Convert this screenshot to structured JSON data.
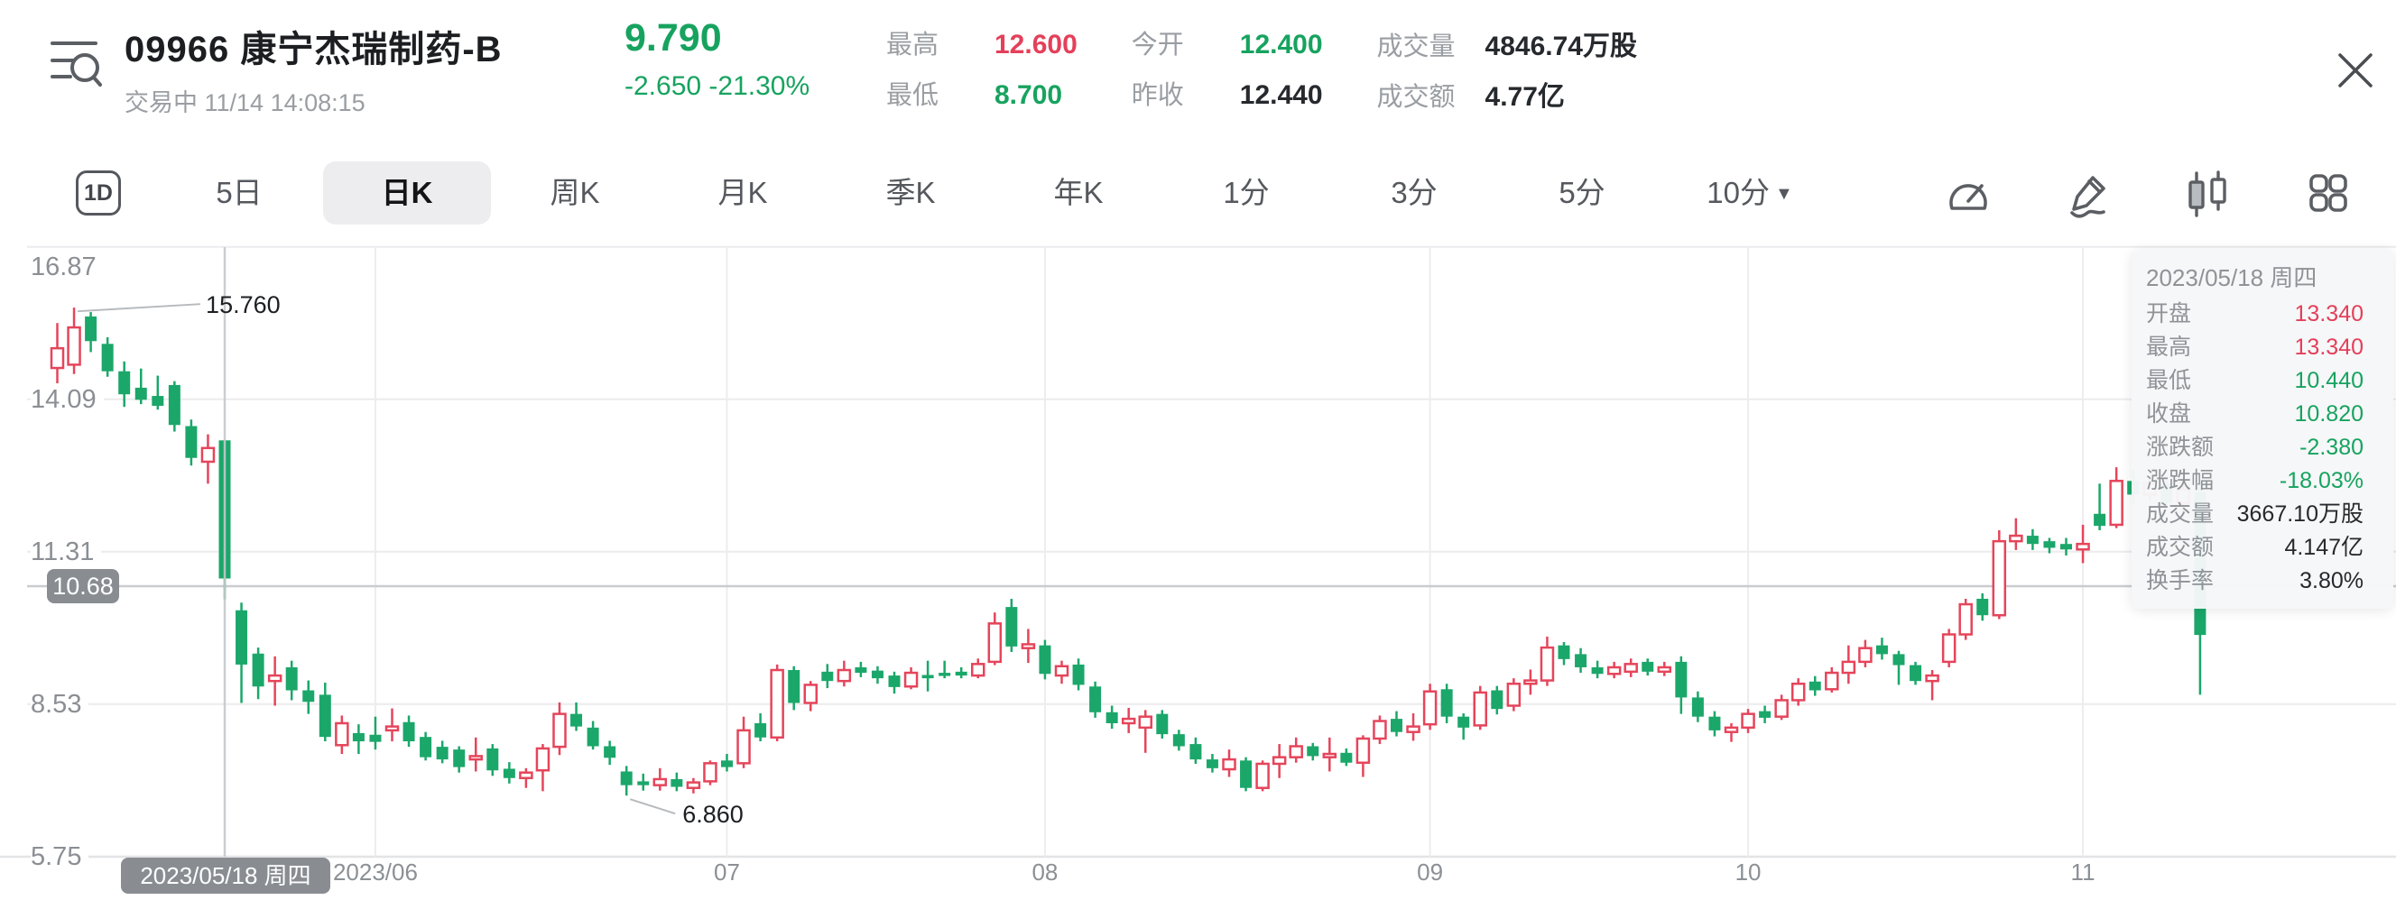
{
  "header": {
    "code_name": "09966  康宁杰瑞制药-B",
    "status_line": "交易中 11/14 14:08:15",
    "price": "9.790",
    "change": "-2.650 -21.30%",
    "stats": [
      {
        "label": "最高",
        "value": "12.600",
        "color": "red"
      },
      {
        "label": "最低",
        "value": "8.700",
        "color": "green"
      },
      {
        "label": "今开",
        "value": "12.400",
        "color": "green"
      },
      {
        "label": "昨收",
        "value": "12.440",
        "color": "black"
      },
      {
        "label": "成交量",
        "value": "4846.74万股",
        "color": "black"
      },
      {
        "label": "成交额",
        "value": "4.77亿",
        "color": "black"
      }
    ]
  },
  "toolbar": {
    "range_button": "1D",
    "tabs": [
      {
        "label": "5日"
      },
      {
        "label": "日K",
        "active": true
      },
      {
        "label": "周K"
      },
      {
        "label": "月K"
      },
      {
        "label": "季K"
      },
      {
        "label": "年K"
      },
      {
        "label": "1分"
      },
      {
        "label": "3分"
      },
      {
        "label": "5分"
      },
      {
        "label": "10分",
        "dropdown": true
      }
    ],
    "icons": [
      "gauge-icon",
      "draw-pencil-icon",
      "candlestick-style-icon",
      "grid-layout-icon"
    ]
  },
  "tooltip": {
    "date": "2023/05/18 周四",
    "rows": [
      {
        "label": "开盘",
        "value": "13.340",
        "color": "red"
      },
      {
        "label": "最高",
        "value": "13.340",
        "color": "red"
      },
      {
        "label": "最低",
        "value": "10.440",
        "color": "green"
      },
      {
        "label": "收盘",
        "value": "10.820",
        "color": "green"
      },
      {
        "label": "涨跌额",
        "value": "-2.380",
        "color": "green"
      },
      {
        "label": "涨跌幅",
        "value": "-18.03%",
        "color": "green"
      },
      {
        "label": "成交量",
        "value": "3667.10万股",
        "color": "black"
      },
      {
        "label": "成交额",
        "value": "4.147亿",
        "color": "black"
      },
      {
        "label": "换手率",
        "value": "3.80%",
        "color": "black"
      }
    ]
  },
  "chart_data": {
    "type": "candlestick",
    "y_axis_labels": [
      "16.87",
      "14.09",
      "11.31",
      "8.53",
      "5.75"
    ],
    "ylim": [
      5.75,
      16.87
    ],
    "grid": true,
    "x_axis": [
      {
        "label": "2023/06",
        "candle_index": 19
      },
      {
        "label": "07",
        "candle_index": 40
      },
      {
        "label": "08",
        "candle_index": 59
      },
      {
        "label": "09",
        "candle_index": 82
      },
      {
        "label": "10",
        "candle_index": 101
      },
      {
        "label": "11",
        "candle_index": 121
      }
    ],
    "crosshair": {
      "candle_index": 10,
      "price_label": "10.68",
      "date_label": "2023/05/18 周四"
    },
    "annotations": [
      {
        "text": "15.760",
        "candle_index": 1,
        "kind": "high"
      },
      {
        "text": "6.860",
        "candle_index": 34,
        "kind": "low"
      }
    ],
    "colors": {
      "up": "#e5455b",
      "down": "#1ba76a"
    },
    "candles_format": [
      "open",
      "high",
      "low",
      "close"
    ],
    "candles": [
      [
        14.66,
        15.48,
        14.25,
        15.02
      ],
      [
        14.72,
        15.76,
        14.55,
        15.4
      ],
      [
        15.6,
        15.68,
        14.95,
        15.15
      ],
      [
        15.1,
        15.22,
        14.5,
        14.6
      ],
      [
        14.6,
        14.78,
        13.95,
        14.18
      ],
      [
        14.3,
        14.65,
        14.0,
        14.08
      ],
      [
        14.15,
        14.52,
        13.9,
        13.97
      ],
      [
        14.35,
        14.42,
        13.5,
        13.62
      ],
      [
        13.6,
        13.72,
        12.88,
        13.02
      ],
      [
        12.95,
        13.45,
        12.55,
        13.2
      ],
      [
        13.34,
        13.34,
        10.44,
        10.82
      ],
      [
        10.24,
        10.38,
        8.55,
        9.25
      ],
      [
        9.45,
        9.56,
        8.62,
        8.85
      ],
      [
        8.95,
        9.4,
        8.5,
        9.05
      ],
      [
        9.2,
        9.32,
        8.6,
        8.78
      ],
      [
        8.78,
        8.96,
        8.35,
        8.57
      ],
      [
        8.7,
        8.92,
        7.85,
        7.93
      ],
      [
        7.78,
        8.32,
        7.62,
        8.18
      ],
      [
        8.0,
        8.16,
        7.62,
        7.85
      ],
      [
        7.97,
        8.3,
        7.7,
        7.84
      ],
      [
        8.05,
        8.45,
        7.85,
        8.12
      ],
      [
        8.2,
        8.32,
        7.75,
        7.85
      ],
      [
        7.93,
        8.02,
        7.5,
        7.56
      ],
      [
        7.75,
        7.86,
        7.45,
        7.52
      ],
      [
        7.7,
        7.76,
        7.28,
        7.38
      ],
      [
        7.52,
        7.92,
        7.3,
        7.58
      ],
      [
        7.72,
        7.8,
        7.22,
        7.32
      ],
      [
        7.35,
        7.47,
        7.08,
        7.18
      ],
      [
        7.18,
        7.36,
        7.0,
        7.28
      ],
      [
        7.32,
        7.8,
        6.94,
        7.72
      ],
      [
        7.75,
        8.56,
        7.6,
        8.35
      ],
      [
        8.35,
        8.56,
        8.04,
        8.12
      ],
      [
        8.1,
        8.22,
        7.7,
        7.76
      ],
      [
        7.76,
        7.86,
        7.42,
        7.55
      ],
      [
        7.3,
        7.4,
        6.86,
        7.05
      ],
      [
        7.12,
        7.26,
        6.95,
        7.05
      ],
      [
        7.05,
        7.36,
        6.95,
        7.16
      ],
      [
        7.16,
        7.28,
        6.94,
        7.02
      ],
      [
        7.0,
        7.18,
        6.9,
        7.1
      ],
      [
        7.12,
        7.5,
        7.05,
        7.45
      ],
      [
        7.5,
        7.62,
        7.3,
        7.38
      ],
      [
        7.45,
        8.3,
        7.36,
        8.05
      ],
      [
        8.18,
        8.36,
        7.85,
        7.92
      ],
      [
        7.92,
        9.25,
        7.85,
        9.15
      ],
      [
        9.15,
        9.22,
        8.42,
        8.55
      ],
      [
        8.55,
        8.95,
        8.4,
        8.88
      ],
      [
        9.12,
        9.26,
        8.82,
        8.95
      ],
      [
        8.95,
        9.32,
        8.85,
        9.15
      ],
      [
        9.2,
        9.3,
        9.02,
        9.1
      ],
      [
        9.14,
        9.22,
        8.9,
        9.0
      ],
      [
        9.05,
        9.12,
        8.72,
        8.84
      ],
      [
        8.85,
        9.2,
        8.8,
        9.1
      ],
      [
        9.06,
        9.32,
        8.76,
        9.0
      ],
      [
        9.1,
        9.32,
        9.0,
        9.08
      ],
      [
        9.12,
        9.2,
        9.0,
        9.05
      ],
      [
        9.05,
        9.36,
        9.0,
        9.26
      ],
      [
        9.3,
        10.2,
        9.24,
        10.0
      ],
      [
        10.3,
        10.45,
        9.48,
        9.58
      ],
      [
        9.55,
        9.9,
        9.28,
        9.62
      ],
      [
        9.6,
        9.7,
        8.98,
        9.08
      ],
      [
        9.05,
        9.32,
        8.9,
        9.22
      ],
      [
        9.25,
        9.36,
        8.78,
        8.88
      ],
      [
        8.85,
        8.94,
        8.28,
        8.38
      ],
      [
        8.38,
        8.5,
        8.08,
        8.18
      ],
      [
        8.18,
        8.46,
        8.0,
        8.26
      ],
      [
        8.1,
        8.42,
        7.64,
        8.3
      ],
      [
        8.35,
        8.42,
        7.9,
        7.98
      ],
      [
        7.98,
        8.06,
        7.68,
        7.76
      ],
      [
        7.8,
        7.92,
        7.44,
        7.52
      ],
      [
        7.52,
        7.62,
        7.28,
        7.36
      ],
      [
        7.34,
        7.7,
        7.2,
        7.52
      ],
      [
        7.5,
        7.56,
        6.94,
        7.0
      ],
      [
        7.0,
        7.5,
        6.94,
        7.44
      ],
      [
        7.44,
        7.8,
        7.18,
        7.56
      ],
      [
        7.56,
        7.92,
        7.46,
        7.76
      ],
      [
        7.76,
        7.82,
        7.5,
        7.58
      ],
      [
        7.56,
        7.92,
        7.3,
        7.62
      ],
      [
        7.64,
        7.72,
        7.4,
        7.46
      ],
      [
        7.46,
        7.96,
        7.2,
        7.9
      ],
      [
        7.9,
        8.32,
        7.8,
        8.22
      ],
      [
        8.26,
        8.4,
        7.94,
        8.02
      ],
      [
        8.02,
        8.36,
        7.86,
        8.12
      ],
      [
        8.16,
        8.9,
        8.06,
        8.76
      ],
      [
        8.8,
        8.9,
        8.18,
        8.3
      ],
      [
        8.3,
        8.36,
        7.88,
        8.1
      ],
      [
        8.14,
        8.86,
        8.06,
        8.74
      ],
      [
        8.78,
        8.86,
        8.34,
        8.44
      ],
      [
        8.5,
        9.0,
        8.4,
        8.9
      ],
      [
        8.9,
        9.16,
        8.7,
        8.96
      ],
      [
        8.96,
        9.76,
        8.86,
        9.56
      ],
      [
        9.6,
        9.66,
        9.24,
        9.35
      ],
      [
        9.44,
        9.55,
        9.1,
        9.2
      ],
      [
        9.2,
        9.32,
        9.0,
        9.08
      ],
      [
        9.08,
        9.3,
        9.0,
        9.2
      ],
      [
        9.12,
        9.36,
        9.02,
        9.26
      ],
      [
        9.3,
        9.36,
        9.05,
        9.12
      ],
      [
        9.12,
        9.3,
        9.04,
        9.2
      ],
      [
        9.3,
        9.4,
        8.35,
        8.65
      ],
      [
        8.65,
        8.76,
        8.2,
        8.3
      ],
      [
        8.3,
        8.4,
        7.94,
        8.05
      ],
      [
        8.02,
        8.18,
        7.84,
        8.1
      ],
      [
        8.1,
        8.44,
        8.0,
        8.35
      ],
      [
        8.4,
        8.5,
        8.18,
        8.28
      ],
      [
        8.3,
        8.7,
        8.24,
        8.6
      ],
      [
        8.6,
        9.0,
        8.5,
        8.9
      ],
      [
        8.94,
        9.04,
        8.68,
        8.78
      ],
      [
        8.8,
        9.2,
        8.74,
        9.1
      ],
      [
        9.1,
        9.6,
        8.9,
        9.3
      ],
      [
        9.3,
        9.7,
        9.2,
        9.55
      ],
      [
        9.6,
        9.74,
        9.34,
        9.44
      ],
      [
        9.44,
        9.5,
        8.88,
        9.24
      ],
      [
        9.24,
        9.3,
        8.88,
        8.95
      ],
      [
        8.95,
        9.15,
        8.6,
        9.05
      ],
      [
        9.3,
        9.9,
        9.2,
        9.8
      ],
      [
        9.8,
        10.45,
        9.7,
        10.35
      ],
      [
        10.45,
        10.55,
        10.05,
        10.15
      ],
      [
        10.15,
        11.7,
        10.08,
        11.5
      ],
      [
        11.5,
        11.92,
        11.34,
        11.6
      ],
      [
        11.6,
        11.72,
        11.34,
        11.45
      ],
      [
        11.5,
        11.56,
        11.28,
        11.38
      ],
      [
        11.45,
        11.56,
        11.24,
        11.35
      ],
      [
        11.35,
        11.8,
        11.1,
        11.45
      ],
      [
        12.0,
        12.55,
        11.7,
        11.78
      ],
      [
        11.8,
        12.85,
        11.74,
        12.6
      ],
      [
        12.6,
        12.8,
        12.18,
        12.35
      ],
      [
        12.35,
        12.7,
        12.24,
        12.55
      ],
      [
        12.55,
        12.62,
        12.08,
        12.2
      ],
      [
        12.2,
        12.52,
        12.0,
        12.44
      ],
      [
        12.4,
        12.6,
        8.7,
        9.79
      ]
    ]
  }
}
